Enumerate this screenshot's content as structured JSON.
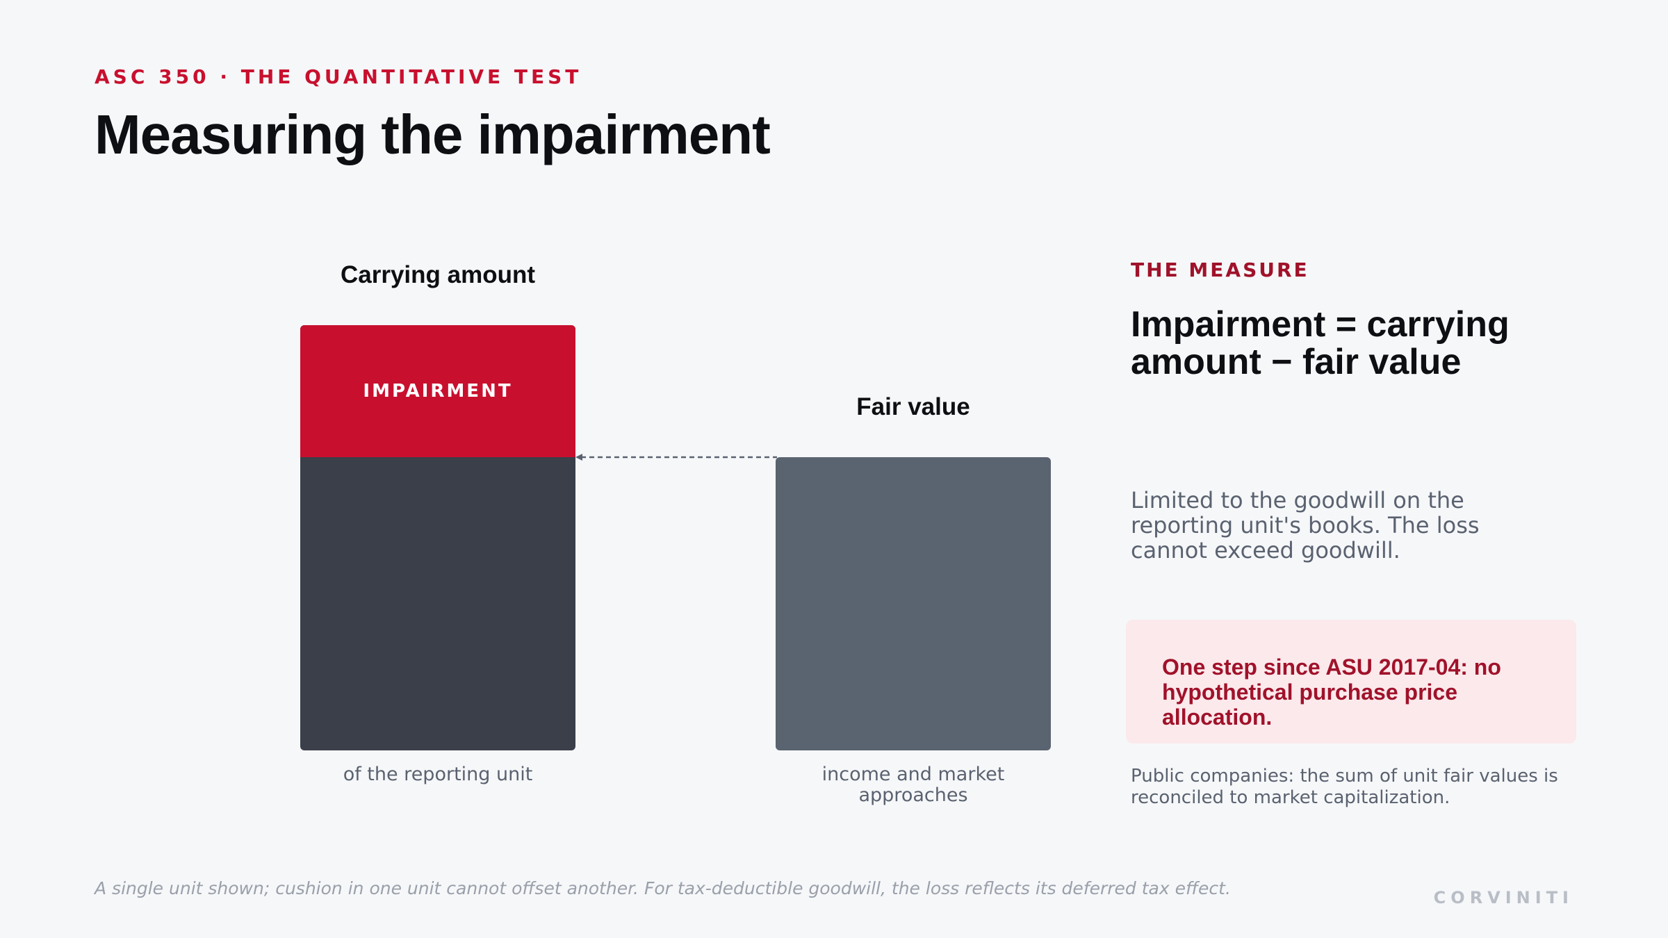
{
  "header": {
    "eyebrow": "ASC 350 · THE QUANTITATIVE TEST",
    "title": "Measuring the impairment"
  },
  "diagram": {
    "carrying": {
      "heading": "Carrying amount",
      "segment_label": "IMPAIRMENT",
      "caption": "of the reporting unit"
    },
    "fair_value": {
      "heading": "Fair value",
      "caption_line1": "income and market",
      "caption_line2": "approaches"
    },
    "colors": {
      "impairment": "#c8102e",
      "carrying": "#3a3f4a",
      "fair_value": "#5a6370"
    }
  },
  "measure": {
    "eyebrow": "THE MEASURE",
    "formula_line1": "Impairment = carrying",
    "formula_line2": "amount − fair value",
    "description": "Limited to the goodwill on the reporting unit's books. The loss cannot exceed goodwill.",
    "callout_line1": "One step since ASU 2017-04: no",
    "callout_line2": "hypothetical purchase price allocation.",
    "note": "Public companies: the sum of unit fair values is reconciled to market capitalization."
  },
  "footer": {
    "footnote": "A single unit shown; cushion in one unit cannot offset another. For tax-deductible goodwill, the loss reflects its deferred tax effect.",
    "brand": "CORVINITI"
  }
}
